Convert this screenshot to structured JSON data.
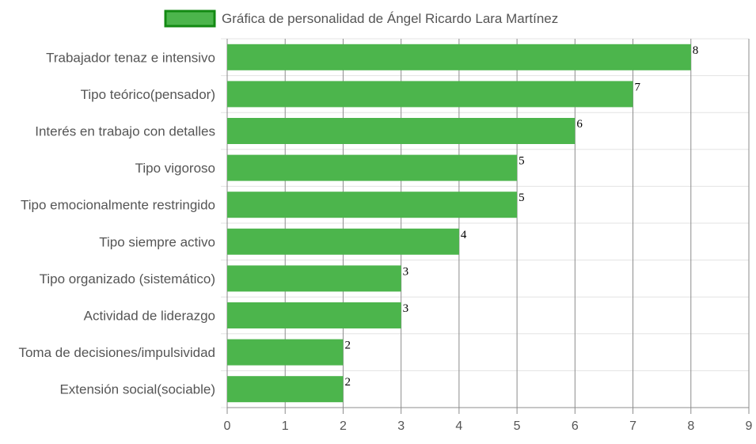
{
  "chart_data": {
    "type": "bar",
    "orientation": "horizontal",
    "legend": {
      "position": "top",
      "entries": [
        "Gráfica de personalidad de Ángel Ricardo Lara Martínez"
      ]
    },
    "categories": [
      "Trabajador tenaz e intensivo",
      "Tipo teórico(pensador)",
      "Interés en trabajo con detalles",
      "Tipo vigoroso",
      "Tipo emocionalmente restringido",
      "Tipo siempre activo",
      "Tipo organizado (sistemático)",
      "Actividad de liderazgo",
      "Toma de decisiones/impulsividad",
      "Extensión social(sociable)"
    ],
    "series": [
      {
        "name": "Gráfica de personalidad de Ángel Ricardo Lara Martínez",
        "values": [
          8,
          7,
          6,
          5,
          5,
          4,
          3,
          3,
          2,
          2
        ]
      }
    ],
    "value_labels": [
      "8",
      "7",
      "6",
      "5",
      "5",
      "4",
      "3",
      "3",
      "2",
      "2"
    ],
    "xlim": [
      0,
      9
    ],
    "x_ticks": [
      "0",
      "1",
      "2",
      "3",
      "4",
      "5",
      "6",
      "7",
      "8",
      "9"
    ],
    "grid": true,
    "colors": {
      "bar_fill": "#4cb54c",
      "legend_fill": "#4cb54c",
      "legend_border": "#138a13",
      "grid_vertical": "#8c8c8c",
      "grid_horizontal": "#e3e3e3",
      "axis": "#8c8c8c",
      "label_text": "#555555",
      "value_text": "#000000"
    }
  }
}
